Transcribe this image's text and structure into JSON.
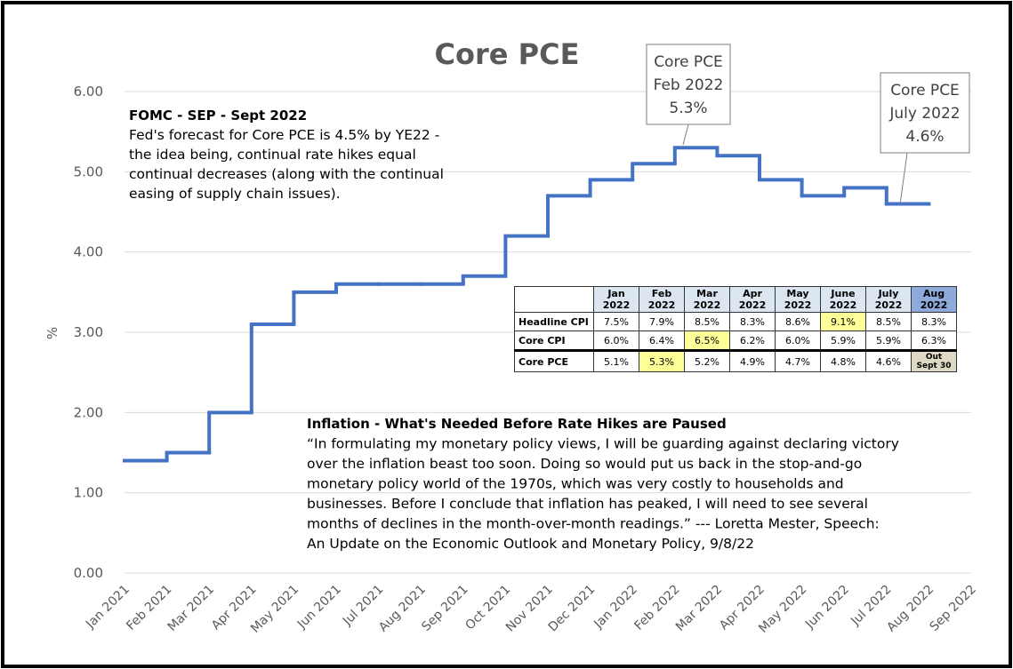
{
  "chart_data": {
    "type": "step",
    "title": "Core PCE",
    "y_label": "%",
    "categories": [
      "Jan 2021",
      "Feb 2021",
      "Mar 2021",
      "Apr 2021",
      "May 2021",
      "Jun 2021",
      "Jul 2021",
      "Aug 2021",
      "Sep 2021",
      "Oct 2021",
      "Nov 2021",
      "Dec 2021",
      "Jan 2022",
      "Feb 2022",
      "Mar 2022",
      "Apr 2022",
      "May 2022",
      "Jun 2022",
      "Jul 2022",
      "Aug 2022",
      "Sep 2022"
    ],
    "series": [
      {
        "color": "#4472c4",
        "values": [
          1.4,
          1.5,
          2.0,
          3.1,
          3.5,
          3.6,
          3.6,
          3.6,
          3.7,
          4.2,
          4.7,
          4.9,
          5.1,
          5.3,
          5.2,
          4.9,
          4.7,
          4.8,
          4.6,
          null,
          null
        ]
      }
    ],
    "ylim": [
      0,
      6
    ],
    "yticks": [
      {
        "value": 0,
        "label": "0.00"
      },
      {
        "value": 1,
        "label": "1.00"
      },
      {
        "value": 2,
        "label": "2.00"
      },
      {
        "value": 3,
        "label": "3.00"
      },
      {
        "value": 4,
        "label": "4.00"
      },
      {
        "value": 5,
        "label": "5.00"
      },
      {
        "value": 6,
        "label": "6.00"
      }
    ],
    "grid": true,
    "callouts": [
      {
        "lines": [
          "Core PCE",
          "Feb 2022",
          "5.3%"
        ]
      },
      {
        "lines": [
          "Core PCE",
          "July 2022",
          "4.6%"
        ]
      }
    ],
    "annotations": [
      {
        "heading": "FOMC - SEP - Sept 2022",
        "lines": [
          "Fed's forecast for Core PCE is 4.5% by YE22 -",
          "the idea being, continual rate hikes equal",
          "continual decreases (along with the continual",
          "easing of supply chain issues)."
        ]
      },
      {
        "heading": "Inflation - What's Needed Before Rate Hikes are Paused",
        "lines": [
          "“In formulating my monetary policy views, I will be guarding against declaring victory",
          "over the inflation beast too soon. Doing so would put us back in the stop-and-go",
          "monetary policy world of the 1970s, which was very costly to households and",
          "businesses. Before I conclude that inflation has peaked, I will need to see several",
          "months of declines in the month-over-month readings.” --- Loretta Mester, Speech:",
          "An Update on the Economic Outlook and Monetary Policy, 9/8/22"
        ]
      }
    ]
  },
  "table": {
    "header": [
      {
        "month": "Jan",
        "year": "2022"
      },
      {
        "month": "Feb",
        "year": "2022"
      },
      {
        "month": "Mar",
        "year": "2022"
      },
      {
        "month": "Apr",
        "year": "2022"
      },
      {
        "month": "May",
        "year": "2022"
      },
      {
        "month": "June",
        "year": "2022"
      },
      {
        "month": "July",
        "year": "2022"
      },
      {
        "month": "Aug",
        "year": "2022"
      }
    ],
    "rows": [
      {
        "label": "Headline CPI",
        "cells": [
          "7.5%",
          "7.9%",
          "8.5%",
          "8.3%",
          "8.6%",
          "9.1%",
          "8.5%",
          "8.3%"
        ],
        "highlight": 5
      },
      {
        "label": "Core CPI",
        "cells": [
          "6.0%",
          "6.4%",
          "6.5%",
          "6.2%",
          "6.0%",
          "5.9%",
          "5.9%",
          "6.3%"
        ],
        "highlight": 2
      },
      {
        "label": "Core PCE",
        "cells": [
          "5.1%",
          "5.3%",
          "5.2%",
          "4.9%",
          "4.7%",
          "4.8%",
          "4.6%",
          "Out Sept 30"
        ],
        "highlight": 1
      }
    ]
  }
}
